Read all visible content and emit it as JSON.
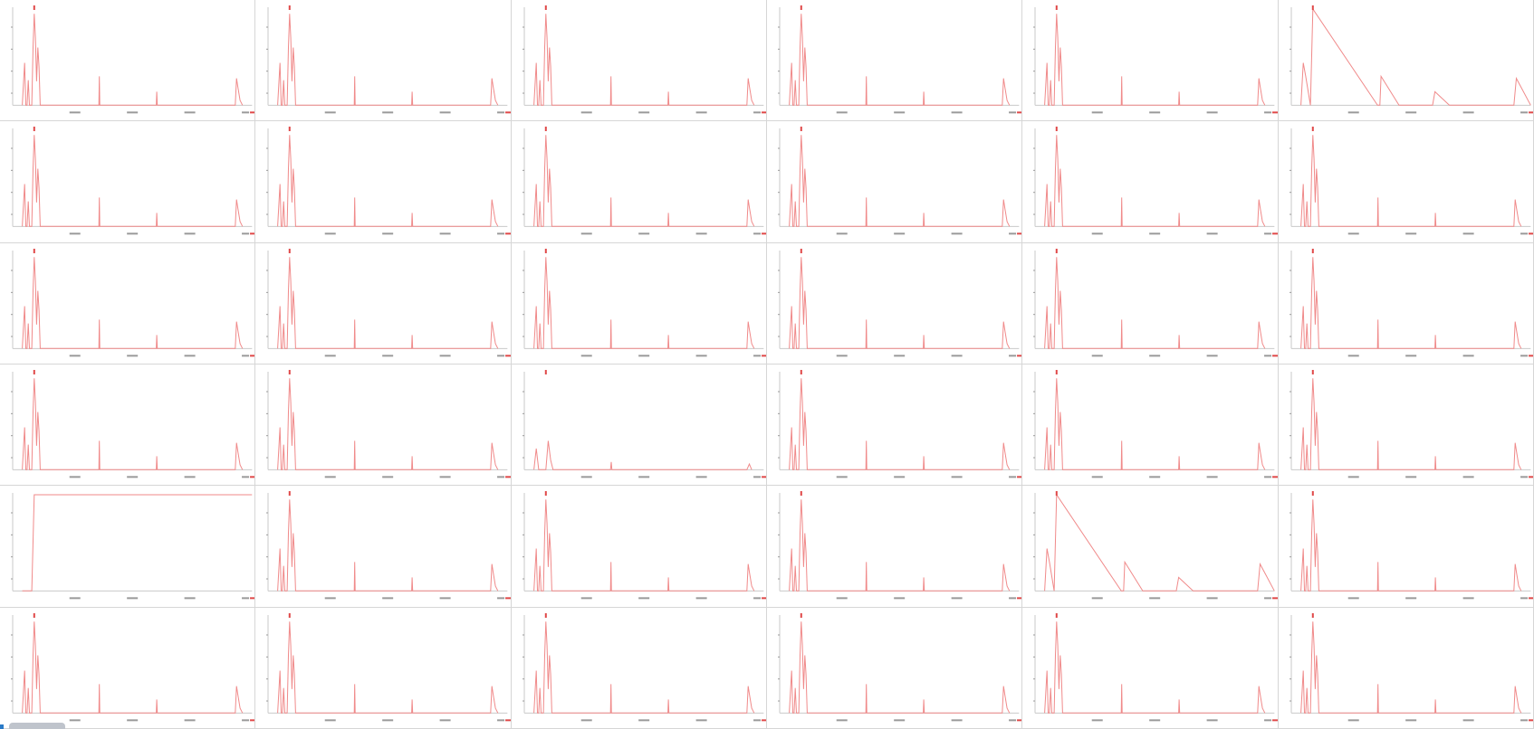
{
  "colors": {
    "series": "#f08a8a",
    "axis": "#c9c9c9",
    "tick_label": "#9a9a9a",
    "accent_label": "#e04848",
    "divider": "#d6d6d6"
  },
  "grid": {
    "rows": 6,
    "cols": 6
  },
  "chart_data": {
    "type": "line",
    "panels_count": 36,
    "y_ticks": [
      "",
      "",
      "",
      ""
    ],
    "x_ticks": [
      "",
      "",
      "",
      ""
    ],
    "x_range": [
      0,
      100
    ],
    "y_range": [
      0,
      100
    ],
    "grid": false,
    "legend": "none",
    "series_templates": {
      "normal": {
        "name": "",
        "x": [
          4,
          5,
          5.5,
          6,
          6.5,
          7,
          8,
          8.5,
          9,
          9.5,
          10,
          10.5,
          11,
          11.5,
          12,
          12.5,
          13,
          14,
          36,
          36.2,
          36.4,
          36.8,
          60,
          60.2,
          60.4,
          60.8,
          93,
          93.5,
          94,
          95,
          96
        ],
        "y": [
          0,
          44,
          0,
          0,
          26,
          0,
          0,
          60,
          95,
          70,
          25,
          60,
          40,
          0,
          0,
          0,
          0,
          0,
          0,
          30,
          0,
          0,
          0,
          14,
          0,
          0,
          0,
          28,
          20,
          5,
          0
        ]
      },
      "ramp": {
        "name": "",
        "x": [
          4,
          5,
          6,
          8,
          9,
          36,
          37,
          37.5,
          45,
          58,
          59,
          60,
          66,
          93,
          94,
          100
        ],
        "y": [
          0,
          44,
          30,
          0,
          100,
          0,
          0,
          30,
          0,
          0,
          0,
          14,
          0,
          0,
          28,
          0
        ]
      },
      "flat": {
        "name": "",
        "x": [
          4,
          7,
          8,
          9,
          100
        ],
        "y": [
          0,
          0,
          0,
          100,
          100
        ]
      },
      "small": {
        "name": "",
        "x": [
          4,
          5,
          6,
          9,
          10,
          11,
          12,
          36,
          36.3,
          36.6,
          93,
          94,
          95
        ],
        "y": [
          0,
          22,
          0,
          0,
          30,
          10,
          0,
          0,
          8,
          0,
          0,
          6,
          0
        ]
      }
    },
    "panels": [
      "normal",
      "normal",
      "normal",
      "normal",
      "normal",
      "ramp",
      "normal",
      "normal",
      "normal",
      "normal",
      "normal",
      "normal",
      "normal",
      "normal",
      "normal",
      "normal",
      "normal",
      "normal",
      "normal",
      "normal",
      "small",
      "normal",
      "normal",
      "normal",
      "flat",
      "normal",
      "normal",
      "normal",
      "ramp",
      "normal",
      "normal",
      "normal",
      "normal",
      "normal",
      "normal",
      "normal"
    ]
  }
}
